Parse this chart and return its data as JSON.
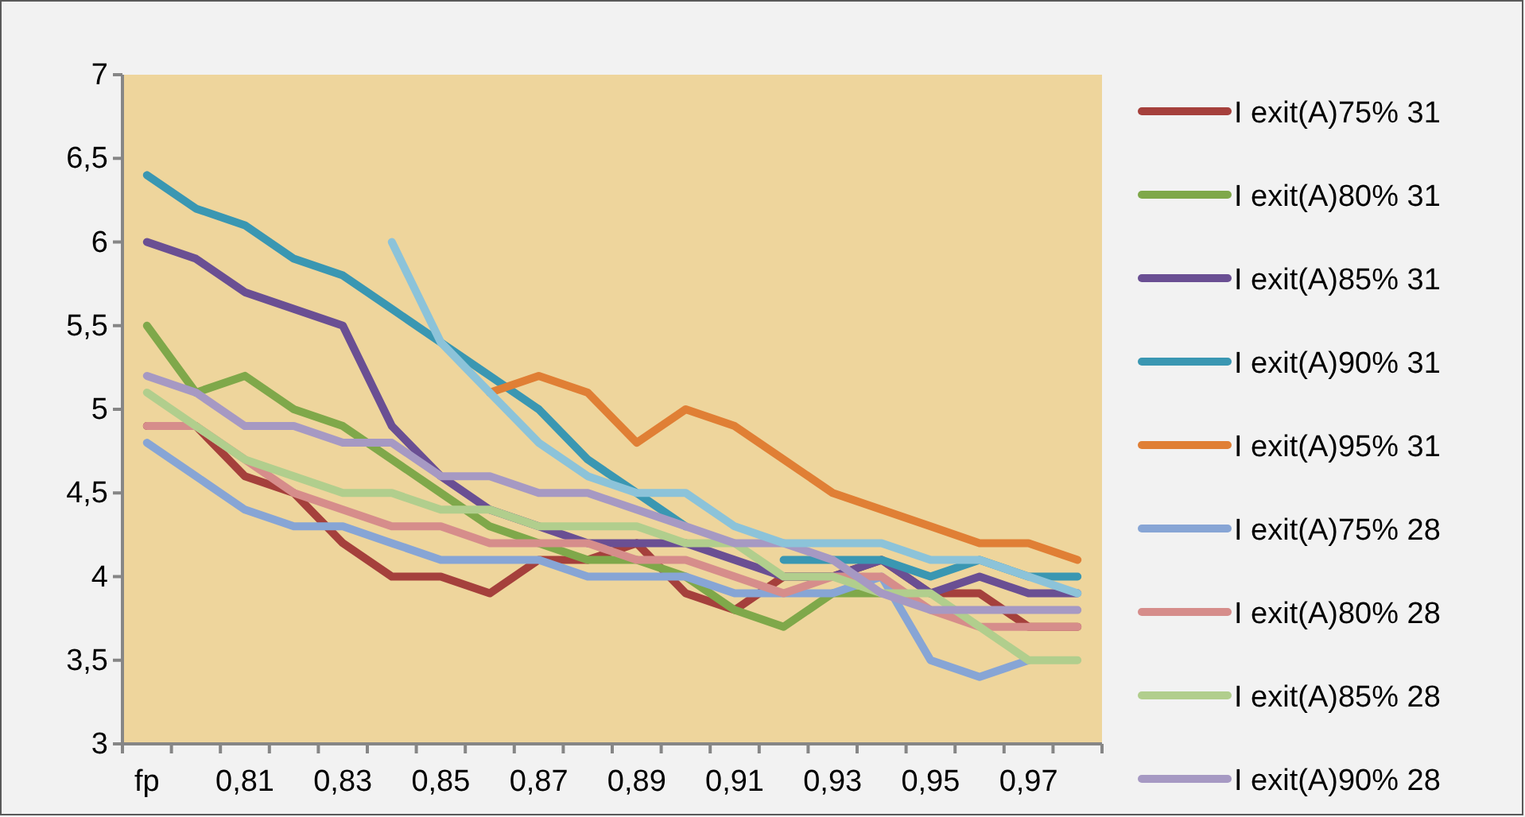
{
  "chart_data": {
    "type": "line",
    "categories": [
      "fp",
      null,
      "0,81",
      null,
      "0,83",
      null,
      "0,85",
      null,
      "0,87",
      null,
      "0,89",
      null,
      "0,91",
      null,
      "0,93",
      null,
      "0,95",
      null,
      "0,97",
      null
    ],
    "ylim": [
      3,
      7
    ],
    "yticks": [
      3,
      {
        "value": 3.5,
        "label": "3,5"
      },
      4,
      {
        "value": 4.5,
        "label": "4,5"
      },
      5,
      {
        "value": 5.5,
        "label": "5,5"
      },
      6,
      {
        "value": 6.5,
        "label": "6,5"
      },
      7
    ],
    "grid": false,
    "legend": "right",
    "marker": "none",
    "line_style": "solid",
    "series": [
      {
        "name": "I exit(A)75% 31",
        "color": "#a5403c",
        "values": [
          4.9,
          4.9,
          4.6,
          4.5,
          4.2,
          4.0,
          4.0,
          3.9,
          4.1,
          4.1,
          4.2,
          3.9,
          3.8,
          4.0,
          4.0,
          4.1,
          3.9,
          3.9,
          3.7,
          3.7
        ]
      },
      {
        "name": "I exit(A)80% 31",
        "color": "#7fa84a",
        "values": [
          5.5,
          5.1,
          5.2,
          5.0,
          4.9,
          4.7,
          4.5,
          4.3,
          4.2,
          4.1,
          4.1,
          4.0,
          3.8,
          3.7,
          3.9,
          3.9,
          null,
          null,
          null,
          null
        ]
      },
      {
        "name": "I exit(A)85% 31",
        "color": "#6a4f93",
        "values": [
          6.0,
          5.9,
          5.7,
          5.6,
          5.5,
          4.9,
          4.6,
          4.4,
          4.3,
          4.2,
          4.2,
          4.2,
          4.1,
          4.0,
          4.0,
          4.1,
          3.9,
          4.0,
          3.9,
          3.9
        ]
      },
      {
        "name": "I exit(A)90% 31",
        "color": "#3a97b2",
        "values": [
          6.4,
          6.2,
          6.1,
          5.9,
          5.8,
          5.6,
          5.4,
          5.2,
          5.0,
          4.7,
          4.5,
          4.3,
          null,
          4.1,
          4.1,
          4.1,
          4.0,
          4.1,
          4.0,
          4.0
        ]
      },
      {
        "name": "I exit(A)95% 31",
        "color": "#e07f35",
        "values": [
          null,
          null,
          null,
          null,
          null,
          null,
          null,
          5.1,
          5.2,
          5.1,
          4.8,
          5.0,
          4.9,
          4.7,
          4.5,
          4.4,
          4.3,
          4.2,
          4.2,
          4.1
        ]
      },
      {
        "name": "I exit(A)75% 28",
        "color": "#87a5d5",
        "values": [
          4.8,
          4.6,
          4.4,
          4.3,
          4.3,
          4.2,
          4.1,
          4.1,
          4.1,
          4.0,
          4.0,
          4.0,
          3.9,
          3.9,
          3.9,
          4.0,
          3.5,
          3.4,
          3.5,
          null
        ]
      },
      {
        "name": "I exit(A)80% 28",
        "color": "#d68d8b",
        "values": [
          4.9,
          4.9,
          4.7,
          4.5,
          4.4,
          4.3,
          4.3,
          4.2,
          4.2,
          4.2,
          4.1,
          4.1,
          4.0,
          3.9,
          4.0,
          4.0,
          3.8,
          3.7,
          3.7,
          3.7
        ]
      },
      {
        "name": "I exit(A)85% 28",
        "color": "#b1ce8d",
        "values": [
          5.1,
          4.9,
          4.7,
          4.6,
          4.5,
          4.5,
          4.4,
          4.4,
          4.3,
          4.3,
          4.3,
          4.2,
          4.2,
          4.0,
          4.0,
          3.9,
          3.9,
          3.7,
          3.5,
          3.5
        ]
      },
      {
        "name": "I exit(A)90% 28",
        "color": "#a699c3",
        "values": [
          5.2,
          5.1,
          4.9,
          4.9,
          4.8,
          4.8,
          4.6,
          4.6,
          4.5,
          4.5,
          4.4,
          4.3,
          4.2,
          4.2,
          4.1,
          3.9,
          3.8,
          3.8,
          3.8,
          3.8
        ]
      },
      {
        "color": "#8cc3d9",
        "values": [
          null,
          null,
          null,
          null,
          null,
          6.0,
          5.4,
          5.1,
          4.8,
          4.6,
          4.5,
          4.5,
          4.3,
          4.2,
          4.2,
          4.2,
          4.1,
          4.1,
          4.0,
          3.9
        ]
      }
    ]
  }
}
